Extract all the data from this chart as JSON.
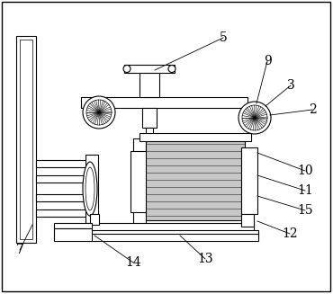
{
  "background_color": "#ffffff",
  "line_color": "#000000",
  "gray_fill": "#b0b0b0",
  "light_gray": "#c8c8c8",
  "figsize": [
    3.7,
    3.27
  ],
  "dpi": 100
}
